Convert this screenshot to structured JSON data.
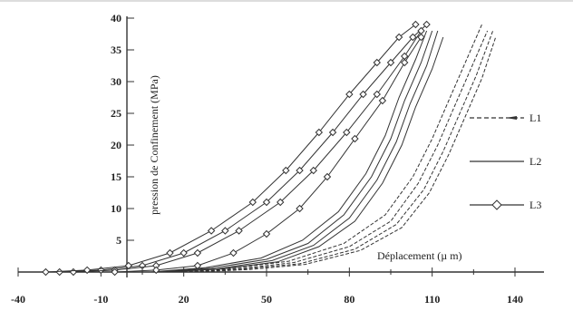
{
  "chart_data": {
    "type": "line",
    "title": "",
    "xlabel": "Déplacement (µ m)",
    "ylabel": "pression de Confinement (MPa)",
    "xlim": [
      -40,
      140
    ],
    "ylim": [
      0,
      40
    ],
    "x_ticks": [
      -40,
      -10,
      20,
      50,
      80,
      110,
      140
    ],
    "y_ticks": [
      5,
      10,
      15,
      20,
      25,
      30,
      35,
      40
    ],
    "grid": false,
    "legend_position": "right",
    "series": [
      {
        "name": "L1",
        "style": "dashed",
        "curves": [
          [
            [
              20,
              0
            ],
            [
              40,
              0.5
            ],
            [
              60,
              1.5
            ],
            [
              80,
              4
            ],
            [
              95,
              8
            ],
            [
              105,
              14
            ],
            [
              112,
              20
            ],
            [
              118,
              26
            ],
            [
              124,
              32
            ],
            [
              130,
              38
            ]
          ],
          [
            [
              22,
              0
            ],
            [
              42,
              0.5
            ],
            [
              62,
              1.3
            ],
            [
              82,
              3.6
            ],
            [
              97,
              7.5
            ],
            [
              107,
              13
            ],
            [
              114,
              19
            ],
            [
              120,
              25
            ],
            [
              126,
              31
            ],
            [
              132,
              38
            ]
          ],
          [
            [
              18,
              0
            ],
            [
              38,
              0.6
            ],
            [
              58,
              1.7
            ],
            [
              78,
              4.5
            ],
            [
              93,
              9
            ],
            [
              103,
              15
            ],
            [
              110,
              21
            ],
            [
              116,
              27
            ],
            [
              122,
              33
            ],
            [
              128,
              39
            ]
          ],
          [
            [
              24,
              0
            ],
            [
              44,
              0.4
            ],
            [
              64,
              1.2
            ],
            [
              84,
              3.4
            ],
            [
              99,
              7
            ],
            [
              109,
              12.5
            ],
            [
              116,
              18.5
            ],
            [
              122,
              24.5
            ],
            [
              128,
              30.5
            ],
            [
              133,
              37
            ]
          ]
        ]
      },
      {
        "name": "L2",
        "style": "solid",
        "curves": [
          [
            [
              10,
              0
            ],
            [
              30,
              0.6
            ],
            [
              50,
              2
            ],
            [
              65,
              4.5
            ],
            [
              78,
              9
            ],
            [
              88,
              15
            ],
            [
              95,
              21
            ],
            [
              100,
              27
            ],
            [
              106,
              33
            ],
            [
              110,
              38
            ]
          ],
          [
            [
              12,
              0
            ],
            [
              32,
              0.5
            ],
            [
              52,
              1.8
            ],
            [
              67,
              4.2
            ],
            [
              80,
              8.5
            ],
            [
              90,
              14.5
            ],
            [
              97,
              20.5
            ],
            [
              102,
              26.5
            ],
            [
              108,
              32.5
            ],
            [
              112,
              38
            ]
          ],
          [
            [
              8,
              0
            ],
            [
              28,
              0.7
            ],
            [
              48,
              2.2
            ],
            [
              63,
              5
            ],
            [
              76,
              9.5
            ],
            [
              86,
              15.5
            ],
            [
              93,
              21.5
            ],
            [
              98,
              27.5
            ],
            [
              104,
              33.5
            ],
            [
              108,
              38
            ]
          ],
          [
            [
              14,
              0
            ],
            [
              34,
              0.5
            ],
            [
              54,
              1.6
            ],
            [
              69,
              4
            ],
            [
              82,
              8
            ],
            [
              92,
              14
            ],
            [
              99,
              20
            ],
            [
              104,
              26
            ],
            [
              110,
              32
            ],
            [
              114,
              37
            ]
          ]
        ]
      },
      {
        "name": "L3",
        "style": "solid-diamond",
        "curves": [
          [
            [
              -25,
              0
            ],
            [
              -10,
              0.3
            ],
            [
              5,
              1
            ],
            [
              20,
              3
            ],
            [
              35,
              6.5
            ],
            [
              50,
              11
            ],
            [
              62,
              16
            ],
            [
              74,
              22
            ],
            [
              85,
              28
            ],
            [
              95,
              33
            ],
            [
              103,
              37
            ],
            [
              108,
              39
            ]
          ],
          [
            [
              -20,
              0
            ],
            [
              -5,
              0.3
            ],
            [
              10,
              1
            ],
            [
              25,
              3
            ],
            [
              40,
              6.5
            ],
            [
              55,
              11
            ],
            [
              67,
              16
            ],
            [
              79,
              22
            ],
            [
              90,
              28
            ],
            [
              100,
              34
            ],
            [
              106,
              38
            ]
          ],
          [
            [
              -30,
              0
            ],
            [
              -15,
              0.3
            ],
            [
              0,
              1
            ],
            [
              15,
              3
            ],
            [
              30,
              6.5
            ],
            [
              45,
              11
            ],
            [
              57,
              16
            ],
            [
              69,
              22
            ],
            [
              80,
              28
            ],
            [
              90,
              33
            ],
            [
              98,
              37
            ],
            [
              104,
              39
            ]
          ],
          [
            [
              -5,
              0
            ],
            [
              10,
              0.3
            ],
            [
              25,
              1
            ],
            [
              38,
              3
            ],
            [
              50,
              6
            ],
            [
              62,
              10
            ],
            [
              72,
              15
            ],
            [
              82,
              21
            ],
            [
              92,
              27
            ],
            [
              100,
              33
            ],
            [
              106,
              37
            ]
          ]
        ]
      }
    ]
  }
}
